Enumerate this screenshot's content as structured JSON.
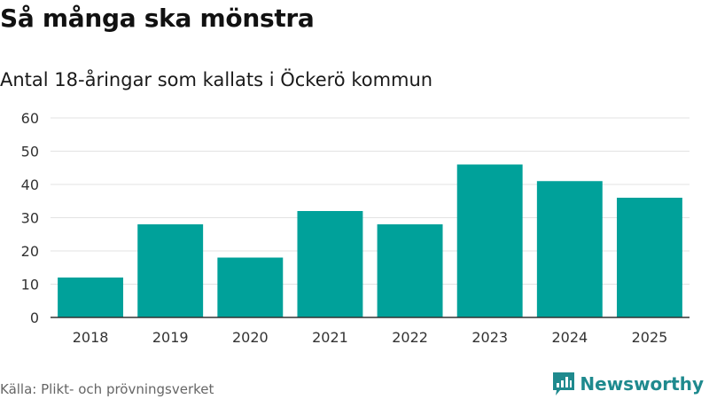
{
  "header": {
    "title": "Så många ska mönstra",
    "subtitle": "Antal 18-åringar som kallats i Öckerö kommun"
  },
  "footer": {
    "source": "Källa: Plikt- och prövningsverket",
    "brand_name": "Newsworthy",
    "brand_color": "#1f8a8e"
  },
  "chart_data": {
    "type": "bar",
    "categories": [
      "2018",
      "2019",
      "2020",
      "2021",
      "2022",
      "2023",
      "2024",
      "2025"
    ],
    "values": [
      12,
      28,
      18,
      32,
      28,
      46,
      41,
      36
    ],
    "ylim": [
      0,
      60
    ],
    "yticks": [
      0,
      10,
      20,
      30,
      40,
      50,
      60
    ],
    "bar_color": "#00a19a",
    "grid": true,
    "xlabel": "",
    "ylabel": ""
  }
}
